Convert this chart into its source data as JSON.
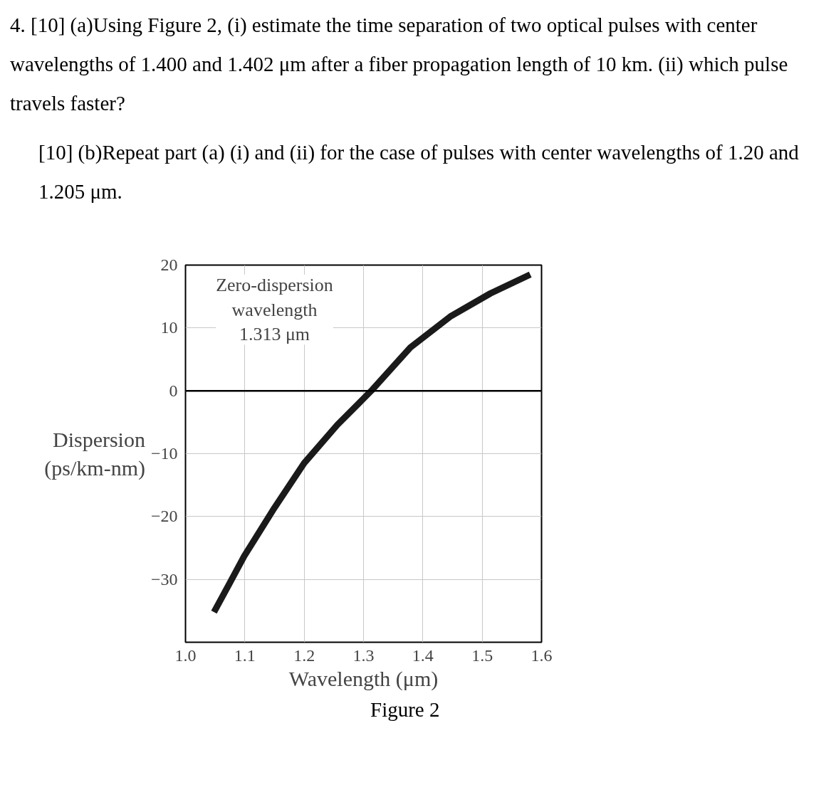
{
  "chart_data": {
    "type": "line",
    "xlabel": "Wavelength (μm)",
    "ylabel": "Dispersion\n(ps/km-nm)",
    "annotations": [
      "4. [10] (a)Using Figure 2, (i) estimate the time separation of two optical pulses with center wavelengths of 1.400 and 1.402 μm after a fiber propagation length of 10 km. (ii) which pulse travels faster?",
      "[10] (b)Repeat part (a) (i) and (ii) for the case of pulses with center wavelengths of 1.20 and 1.205 μm.",
      "Zero-dispersion\nwavelength\n1.313 μm",
      "Figure 2"
    ],
    "series": [
      {
        "color": "#1a1a1a",
        "x": [
          1.048,
          1.075,
          1.099,
          1.15,
          1.2,
          1.256,
          1.313,
          1.379,
          1.446,
          1.514,
          1.581
        ],
        "values": [
          -35.2,
          -30.5,
          -26.3,
          -18.6,
          -11.5,
          -5.4,
          0,
          6.9,
          11.8,
          15.5,
          18.5
        ]
      }
    ],
    "xlim": [
      1.0,
      1.6
    ],
    "xticks": [
      {
        "value": 1.0,
        "label": "1.0"
      },
      1.1,
      1.2,
      1.3,
      1.4,
      1.5,
      1.6
    ],
    "ylim": [
      -40,
      20
    ],
    "yticks": [
      -30,
      -20,
      -10,
      0,
      10,
      20
    ],
    "grid": true,
    "line_style": "solid",
    "marker": "none",
    "ref_lines": [
      {
        "axis": "y",
        "value": 0,
        "color": "#000000"
      }
    ]
  }
}
